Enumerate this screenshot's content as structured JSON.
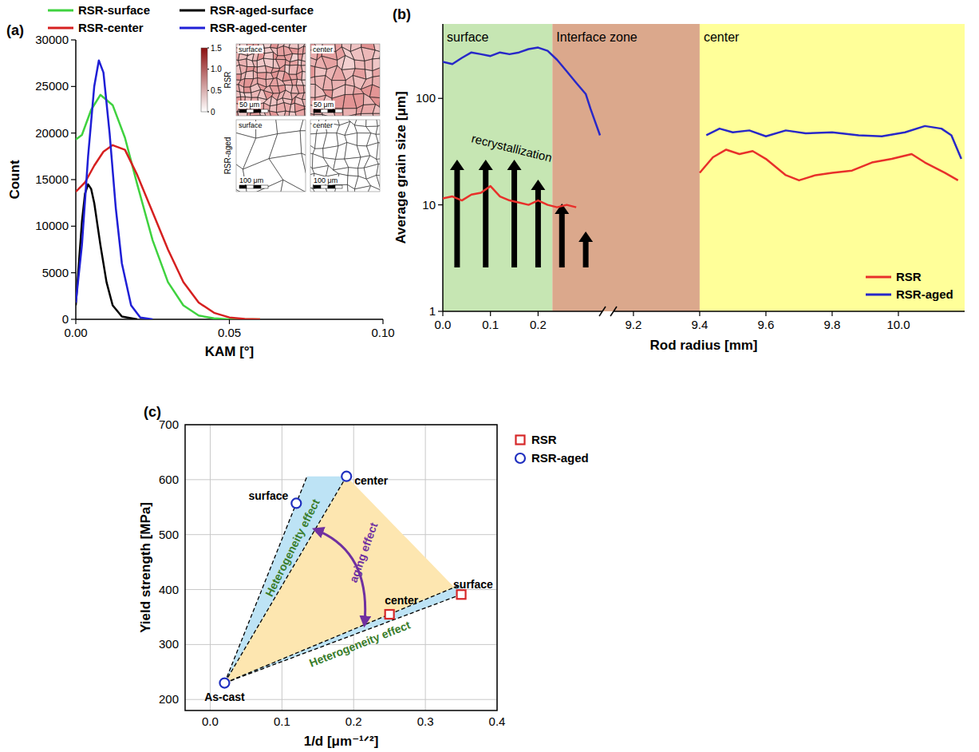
{
  "chart_data": [
    {
      "panel": "(a)",
      "type": "line",
      "x_label": "KAM [°]",
      "y_label": "Count",
      "xlim": [
        0,
        0.1
      ],
      "xticks": [
        {
          "value": 0,
          "label": "0.00"
        },
        {
          "value": 0.05,
          "label": "0.05"
        },
        {
          "value": 0.1,
          "label": "0.10"
        }
      ],
      "ylim": [
        0,
        30000
      ],
      "yticks": [
        0,
        5000,
        10000,
        15000,
        20000,
        25000,
        30000
      ],
      "legend": "top",
      "series": [
        {
          "name": "RSR-surface",
          "color": "#3fd23f",
          "x": [
            0,
            0.002,
            0.005,
            0.008,
            0.012,
            0.016,
            0.02,
            0.025,
            0.03,
            0.035,
            0.04,
            0.045,
            0.05,
            0.06
          ],
          "values": [
            19300,
            19800,
            22500,
            24100,
            23000,
            19500,
            14500,
            8500,
            4000,
            1500,
            400,
            100,
            0,
            0
          ]
        },
        {
          "name": "RSR-center",
          "color": "#d62020",
          "x": [
            0,
            0.003,
            0.006,
            0.009,
            0.012,
            0.016,
            0.02,
            0.025,
            0.03,
            0.035,
            0.04,
            0.045,
            0.05,
            0.055,
            0.06
          ],
          "values": [
            13700,
            14700,
            16500,
            18000,
            18700,
            18200,
            15500,
            11500,
            7500,
            4000,
            1800,
            700,
            200,
            50,
            0
          ]
        },
        {
          "name": "RSR-aged-surface",
          "color": "#000000",
          "x": [
            0,
            0.001,
            0.002,
            0.003,
            0.004,
            0.005,
            0.006,
            0.008,
            0.01,
            0.012,
            0.015,
            0.02
          ],
          "values": [
            1500,
            6000,
            10500,
            13500,
            14500,
            14000,
            12500,
            8000,
            4000,
            1500,
            300,
            0
          ]
        },
        {
          "name": "RSR-aged-center",
          "color": "#1f1fd6",
          "x": [
            0,
            0.002,
            0.004,
            0.006,
            0.0075,
            0.009,
            0.011,
            0.013,
            0.015,
            0.018,
            0.021,
            0.025
          ],
          "values": [
            1800,
            8000,
            17500,
            25000,
            27800,
            26500,
            20000,
            12000,
            6000,
            1500,
            200,
            0
          ]
        }
      ],
      "inset": {
        "columns": [
          "surface",
          "center"
        ],
        "rows": [
          "RSR",
          "RSR-aged"
        ],
        "scale_bars": [
          "50 μm",
          "100 μm"
        ],
        "colorbar": {
          "range": [
            0,
            1.5
          ],
          "ticks": [
            0,
            0.5,
            {
              "value": 1,
              "label": "1.0"
            },
            1.5
          ],
          "colors": [
            "#ffffff",
            "#8b1010"
          ]
        }
      }
    },
    {
      "panel": "(b)",
      "type": "line",
      "log": "y",
      "x_label": "Rod radius [mm]",
      "y_label": "Average grain size [μm]",
      "xlim": [
        0,
        10.2
      ],
      "x_break": [
        0.335,
        9.14
      ],
      "xticks": [
        {
          "value": 0,
          "label": "0.0"
        },
        0.1,
        0.2,
        9.2,
        9.4,
        9.6,
        9.8,
        {
          "value": 10,
          "label": "10.0"
        }
      ],
      "ylim": [
        1,
        500
      ],
      "yticks": [
        1,
        10,
        100
      ],
      "legend": "bottom-right",
      "zones": [
        {
          "label": "surface",
          "from": 0,
          "to": 0.23,
          "color": "#c6e6b3"
        },
        {
          "label": "Interface zone",
          "from": 0.23,
          "to": 9.4,
          "color": "#dba88c"
        },
        {
          "label": "center",
          "from": 9.4,
          "to": 10.2,
          "color": "#ffff99"
        }
      ],
      "annotations": [
        "recrystallization"
      ],
      "series": [
        {
          "name": "RSR",
          "color": "#e8302a",
          "x": [
            0,
            0.02,
            0.04,
            0.06,
            0.08,
            0.1,
            0.12,
            0.14,
            0.16,
            0.18,
            0.2,
            0.22,
            0.24,
            0.26,
            0.28,
            null,
            9.4,
            9.44,
            9.48,
            9.52,
            9.56,
            9.6,
            9.66,
            9.7,
            9.75,
            9.8,
            9.86,
            9.92,
            9.98,
            10.04,
            10.08,
            10.14,
            10.18
          ],
          "values": [
            11.5,
            12,
            11,
            12.5,
            13,
            15,
            12,
            11,
            10.5,
            10,
            11,
            10,
            9.5,
            10,
            9.5,
            null,
            20,
            28,
            33,
            30,
            32,
            27,
            19,
            17,
            19,
            20,
            21,
            25,
            27,
            30,
            25,
            20,
            17
          ]
        },
        {
          "name": "RSR-aged",
          "color": "#2828c8",
          "x": [
            0,
            0.02,
            0.04,
            0.06,
            0.08,
            0.1,
            0.12,
            0.14,
            0.16,
            0.18,
            0.2,
            0.22,
            0.24,
            0.26,
            0.28,
            0.3,
            0.31,
            0.32,
            0.33,
            null,
            9.42,
            9.46,
            9.5,
            9.55,
            9.6,
            9.66,
            9.72,
            9.8,
            9.88,
            9.95,
            10.02,
            10.08,
            10.13,
            10.16,
            10.19
          ],
          "values": [
            220,
            210,
            240,
            270,
            260,
            250,
            270,
            260,
            270,
            290,
            300,
            280,
            230,
            180,
            140,
            110,
            80,
            60,
            45,
            null,
            45,
            52,
            48,
            50,
            44,
            50,
            47,
            48,
            45,
            44,
            48,
            55,
            52,
            45,
            27
          ]
        }
      ]
    },
    {
      "panel": "(c)",
      "type": "scatter",
      "x_label": "1/d [μm⁻¹ᐟ²]",
      "y_label": "Yield strength [MPa]",
      "xlim": [
        -0.035,
        0.4
      ],
      "xticks": [
        {
          "value": 0,
          "label": "0.0"
        },
        0.1,
        0.2,
        0.3,
        0.4
      ],
      "ylim": [
        180,
        700
      ],
      "yticks": [
        200,
        300,
        400,
        500,
        600,
        700
      ],
      "grid": true,
      "legend": "top-right",
      "annotations": [
        "Heterogeneity effect",
        "Heterogeneity effect",
        "aging effect"
      ],
      "series": [
        {
          "name": "RSR",
          "color": "#d62728",
          "marker": "square",
          "x": [
            0.35,
            0.25
          ],
          "values": [
            391,
            355
          ],
          "point_labels": [
            "surface",
            "center"
          ]
        },
        {
          "name": "RSR-aged",
          "color": "#1f2fbf",
          "marker": "circle",
          "x": [
            0.02,
            0.12,
            0.19
          ],
          "values": [
            230,
            557,
            606
          ],
          "point_labels": [
            "As-cast",
            "surface",
            "center"
          ]
        }
      ]
    }
  ]
}
